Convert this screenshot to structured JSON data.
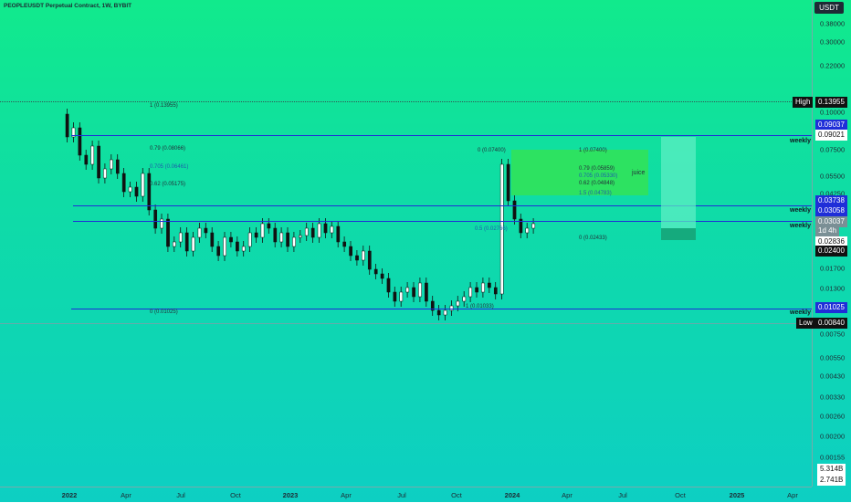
{
  "title": "PEOPLEUSDT Perpetual Contract, 1W, BYBIT",
  "unit_button": "USDT",
  "colors": {
    "up": "#ffffff",
    "down": "#111111",
    "level": "#1f2ed8",
    "long_zone": "#3fe6b0",
    "green_zone": "#30e05a"
  },
  "price_scale": [
    "0.38000",
    "0.30000",
    "0.22000",
    "0.10000",
    "0.07500",
    "0.05500",
    "0.04250",
    "0.01700",
    "0.01300",
    "0.00750",
    "0.00550",
    "0.00430",
    "0.00330",
    "0.00260",
    "0.00200",
    "0.00155"
  ],
  "time_scale": [
    {
      "label": "2022",
      "year": true
    },
    {
      "label": "Apr",
      "year": false
    },
    {
      "label": "Jul",
      "year": false
    },
    {
      "label": "Oct",
      "year": false
    },
    {
      "label": "2023",
      "year": true
    },
    {
      "label": "Apr",
      "year": false
    },
    {
      "label": "Jul",
      "year": false
    },
    {
      "label": "Oct",
      "year": false
    },
    {
      "label": "2024",
      "year": true
    },
    {
      "label": "Apr",
      "year": false
    },
    {
      "label": "Jul",
      "year": false
    },
    {
      "label": "Oct",
      "year": false
    },
    {
      "label": "2025",
      "year": true
    },
    {
      "label": "Apr",
      "year": false
    }
  ],
  "badges": {
    "high_label": "High",
    "high_value": "0.13955",
    "level1": "0.09037",
    "level1b": "0.09021",
    "level2": "0.03738",
    "level3": "0.03058",
    "last_price": "0.03037",
    "countdown": "1d 4h",
    "stop": "0.02836",
    "target_low": "0.02400",
    "level4": "0.01025",
    "low_label": "Low",
    "low_value": "0.00840",
    "volume1": "5.314B",
    "volume2": "2.741B"
  },
  "weekly_labels": [
    "weekly",
    "weekly",
    "weekly",
    "weekly"
  ],
  "fib_left": [
    "1 (0.13955)",
    "0.79 (0.08066)",
    "0.705 (0.06461)",
    "0.62 (0.05175)",
    "0 (0.01025)"
  ],
  "fib_right": [
    "0 (0.07400)",
    "1 (0.07400)",
    "0.79 (0.05859)",
    "0.705 (0.05330)",
    "0.62 (0.04848)",
    "1.5 (0.04783)",
    "0.5 (0.02766)",
    "0 (0.02433)",
    "1 (0.01033)"
  ],
  "juice_label": "juice"
}
